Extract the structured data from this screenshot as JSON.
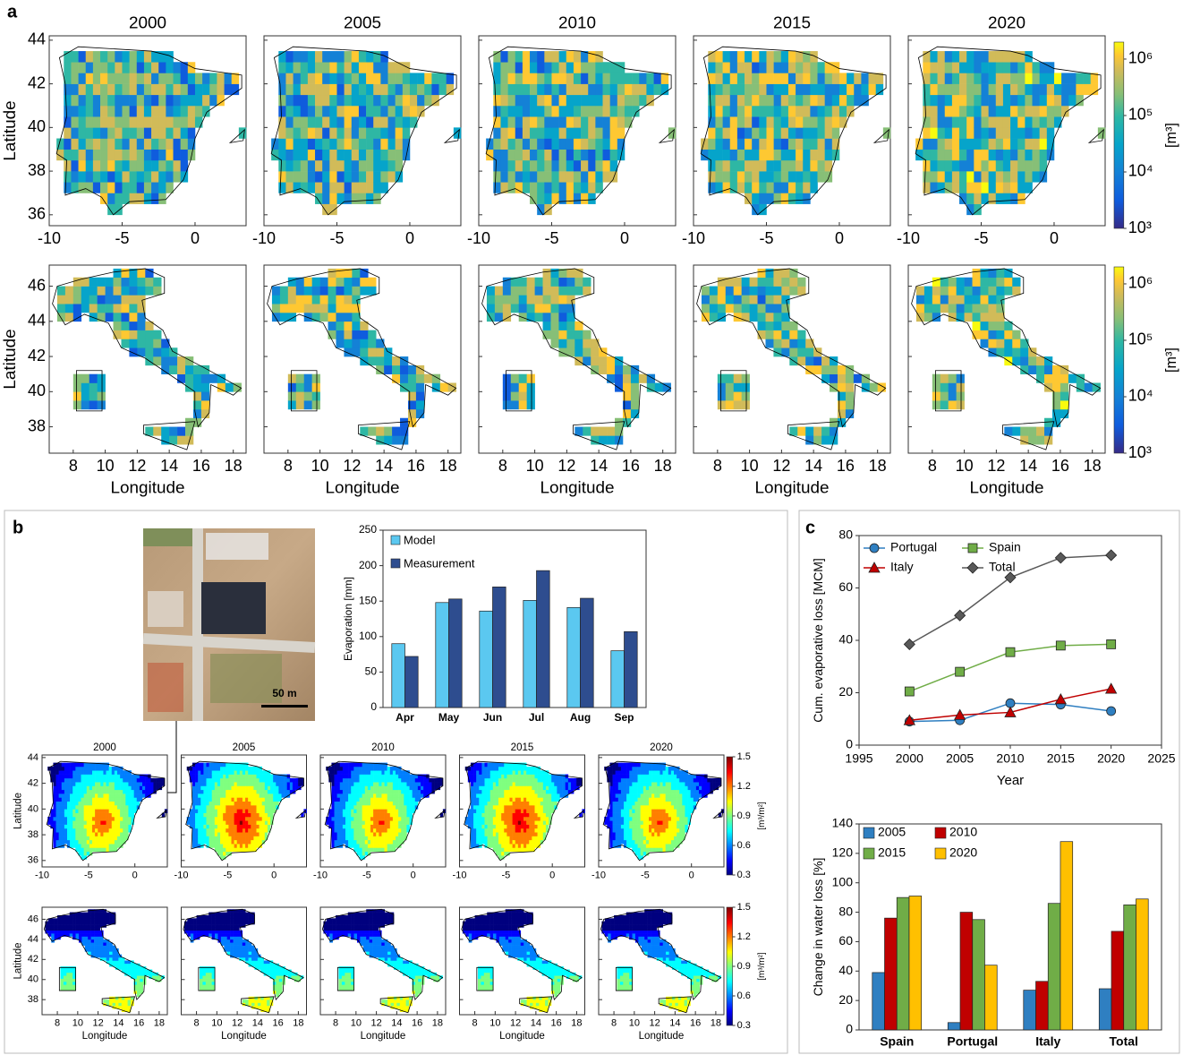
{
  "panel_labels": [
    "a",
    "b",
    "c"
  ],
  "photo_scale": "50 m",
  "chart_data": [
    {
      "type": "map",
      "region": "spain",
      "palette": "parula",
      "titles": [
        "2000",
        "2005",
        "2010",
        "2015",
        "2020"
      ],
      "ylabel": "Latitude",
      "xlim": [
        -10,
        3.5
      ],
      "xticks": [
        -10,
        -5,
        0
      ],
      "ylim": [
        35.5,
        44.2
      ],
      "yticks": [
        36,
        38,
        40,
        42,
        44
      ],
      "colorbar": {
        "label": "[m³]",
        "log": true,
        "lim": [
          1000,
          2000000
        ],
        "ticks": [
          {
            "value": 1000,
            "label": "10³"
          },
          {
            "value": 10000,
            "label": "10⁴"
          },
          {
            "value": 100000,
            "label": "10⁵"
          },
          {
            "value": 1000000,
            "label": "10⁶"
          }
        ]
      }
    },
    {
      "type": "map",
      "region": "italy",
      "palette": "parula",
      "ylabel": "Latitude",
      "xlabel": "Longitude",
      "xlim": [
        6.5,
        18.8
      ],
      "xticks": [
        8,
        10,
        12,
        14,
        16,
        18
      ],
      "ylim": [
        36.5,
        47.2
      ],
      "yticks": [
        38,
        40,
        42,
        44,
        46
      ],
      "colorbar": {
        "label": "[m³]",
        "log": true,
        "lim": [
          1000,
          2000000
        ],
        "ticks": [
          {
            "value": 1000,
            "label": "10³"
          },
          {
            "value": 10000,
            "label": "10⁴"
          },
          {
            "value": 100000,
            "label": "10⁵"
          },
          {
            "value": 1000000,
            "label": "10⁶"
          }
        ]
      }
    },
    {
      "type": "bar",
      "ylabel": "Evaporation [mm]",
      "categories": [
        "Apr",
        "May",
        "Jun",
        "Jul",
        "Aug",
        "Sep"
      ],
      "ylim": [
        0,
        250
      ],
      "yticks": [
        0,
        50,
        100,
        150,
        200,
        250
      ],
      "series": [
        {
          "name": "Model",
          "color": "#5bc8f0",
          "values": [
            90,
            148,
            136,
            151,
            141,
            80
          ]
        },
        {
          "name": "Measurement",
          "color": "#2e4d8f",
          "values": [
            72,
            153,
            170,
            193,
            154,
            107
          ]
        }
      ]
    },
    {
      "type": "map",
      "region": "spain",
      "palette": "jet",
      "titles": [
        "2000",
        "2005",
        "2010",
        "2015",
        "2020"
      ],
      "ylabel": "Latitude",
      "xlim": [
        -10,
        3.5
      ],
      "xticks": [
        -10,
        -5,
        0
      ],
      "ylim": [
        35.5,
        44.2
      ],
      "yticks": [
        36,
        38,
        40,
        42,
        44
      ],
      "colorbar": {
        "label": "[m³/m²]",
        "log": false,
        "lim": [
          0.3,
          1.5
        ],
        "ticks": [
          0.3,
          0.6,
          0.9,
          1.2,
          1.5
        ]
      }
    },
    {
      "type": "map",
      "region": "italy",
      "palette": "jet",
      "ylabel": "Latitude",
      "xlabel": "Longitude",
      "xlim": [
        6.5,
        18.8
      ],
      "xticks": [
        8,
        10,
        12,
        14,
        16,
        18
      ],
      "ylim": [
        36.5,
        47.2
      ],
      "yticks": [
        38,
        40,
        42,
        44,
        46
      ],
      "colorbar": {
        "label": "[m³/m²]",
        "log": false,
        "lim": [
          0.3,
          1.5
        ],
        "ticks": [
          0.3,
          0.6,
          0.9,
          1.2,
          1.5
        ]
      }
    },
    {
      "type": "line",
      "xlabel": "Year",
      "ylabel": "Cum. evaporative loss  [MCM]",
      "x": [
        2000,
        2005,
        2010,
        2015,
        2020
      ],
      "xlim": [
        1995,
        2025
      ],
      "xticks": [
        1995,
        2000,
        2005,
        2010,
        2015,
        2020,
        2025
      ],
      "ylim": [
        0,
        80
      ],
      "yticks": [
        0,
        20,
        40,
        60,
        80
      ],
      "series": [
        {
          "name": "Portugal",
          "color": "#2f7fc1",
          "marker": "circle",
          "values": [
            9,
            9.5,
            16,
            15.5,
            13
          ]
        },
        {
          "name": "Spain",
          "color": "#70ad47",
          "marker": "square",
          "values": [
            20.5,
            28,
            35.5,
            38,
            38.5
          ]
        },
        {
          "name": "Italy",
          "color": "#c00000",
          "marker": "triangle",
          "values": [
            9.5,
            11.5,
            12.5,
            17.5,
            21.5
          ]
        },
        {
          "name": "Total",
          "color": "#595959",
          "marker": "diamond",
          "values": [
            38.5,
            49.5,
            64,
            71.5,
            72.5
          ]
        }
      ]
    },
    {
      "type": "bar",
      "ylabel": "Change in water loss [%]",
      "categories": [
        "Spain",
        "Portugal",
        "Italy",
        "Total"
      ],
      "ylim": [
        0,
        140
      ],
      "yticks": [
        0,
        20,
        40,
        60,
        80,
        100,
        120,
        140
      ],
      "series": [
        {
          "name": "2005",
          "color": "#2f7fc1",
          "values": [
            39,
            5,
            27,
            28
          ]
        },
        {
          "name": "2010",
          "color": "#c00000",
          "values": [
            76,
            80,
            33,
            67
          ]
        },
        {
          "name": "2015",
          "color": "#70ad47",
          "values": [
            90,
            75,
            86,
            85
          ]
        },
        {
          "name": "2020",
          "color": "#ffc000",
          "values": [
            91,
            44,
            128,
            89
          ]
        }
      ]
    }
  ]
}
